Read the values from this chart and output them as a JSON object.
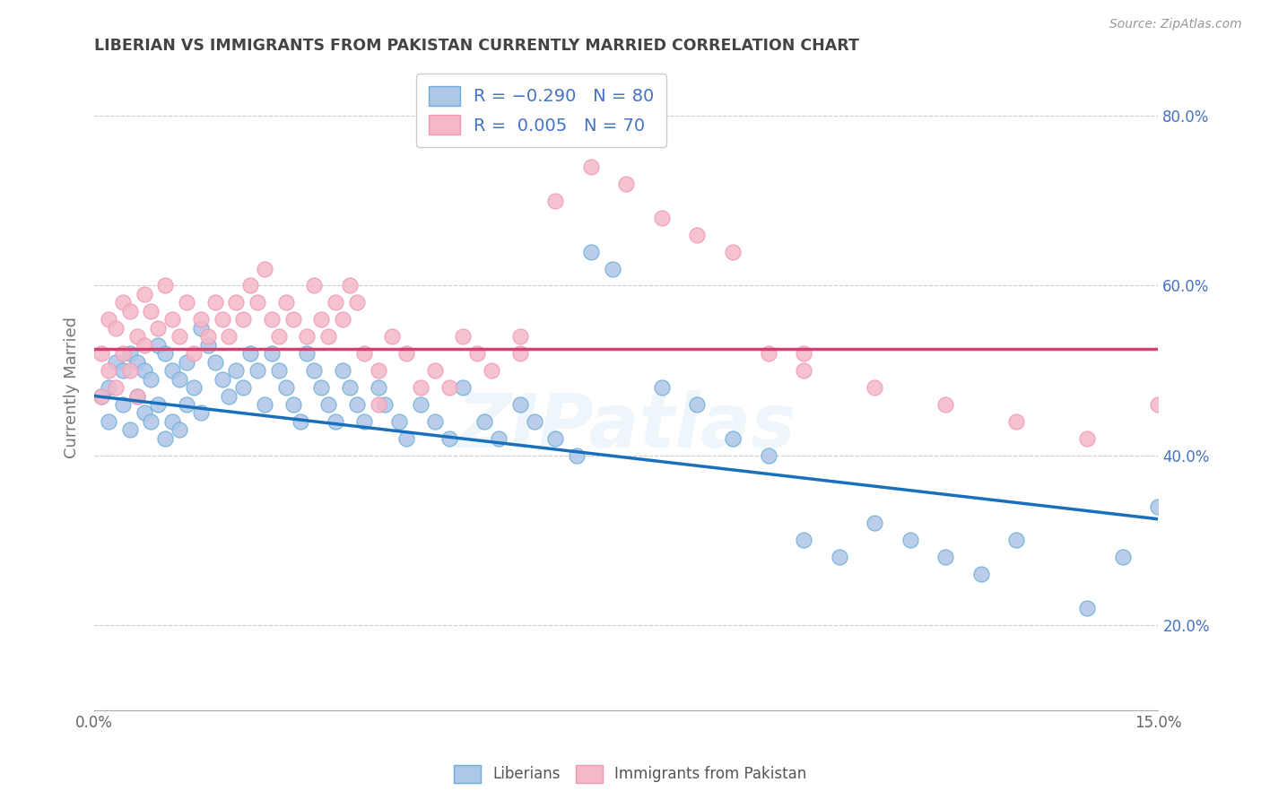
{
  "title": "LIBERIAN VS IMMIGRANTS FROM PAKISTAN CURRENTLY MARRIED CORRELATION CHART",
  "source": "Source: ZipAtlas.com",
  "ylabel": "Currently Married",
  "liberian_color": "#aec6e8",
  "pakistan_color": "#f4b8c8",
  "liberian_edge": "#6baed6",
  "pakistan_edge": "#f099b5",
  "trend_blue": "#1a6fbd",
  "trend_pink": "#d44070",
  "watermark": "ZIPatlas",
  "xlim": [
    0.0,
    0.15
  ],
  "ylim": [
    0.1,
    0.86
  ],
  "blue_trend_x": [
    0.0,
    0.15
  ],
  "blue_trend_y": [
    0.47,
    0.325
  ],
  "pink_trend_y": [
    0.525,
    0.525
  ],
  "background_color": "#ffffff",
  "grid_color": "#cccccc",
  "liberian_x": [
    0.001,
    0.002,
    0.002,
    0.003,
    0.004,
    0.004,
    0.005,
    0.005,
    0.006,
    0.006,
    0.007,
    0.007,
    0.008,
    0.008,
    0.009,
    0.009,
    0.01,
    0.01,
    0.011,
    0.011,
    0.012,
    0.012,
    0.013,
    0.013,
    0.014,
    0.015,
    0.015,
    0.016,
    0.017,
    0.018,
    0.019,
    0.02,
    0.021,
    0.022,
    0.023,
    0.024,
    0.025,
    0.026,
    0.027,
    0.028,
    0.029,
    0.03,
    0.031,
    0.032,
    0.033,
    0.034,
    0.035,
    0.036,
    0.037,
    0.038,
    0.04,
    0.041,
    0.043,
    0.044,
    0.046,
    0.048,
    0.05,
    0.052,
    0.055,
    0.057,
    0.06,
    0.062,
    0.065,
    0.068,
    0.07,
    0.073,
    0.08,
    0.085,
    0.09,
    0.095,
    0.1,
    0.105,
    0.11,
    0.115,
    0.12,
    0.125,
    0.13,
    0.14,
    0.145,
    0.15
  ],
  "liberian_y": [
    0.47,
    0.48,
    0.44,
    0.51,
    0.5,
    0.46,
    0.52,
    0.43,
    0.51,
    0.47,
    0.5,
    0.45,
    0.49,
    0.44,
    0.53,
    0.46,
    0.52,
    0.42,
    0.5,
    0.44,
    0.49,
    0.43,
    0.51,
    0.46,
    0.48,
    0.55,
    0.45,
    0.53,
    0.51,
    0.49,
    0.47,
    0.5,
    0.48,
    0.52,
    0.5,
    0.46,
    0.52,
    0.5,
    0.48,
    0.46,
    0.44,
    0.52,
    0.5,
    0.48,
    0.46,
    0.44,
    0.5,
    0.48,
    0.46,
    0.44,
    0.48,
    0.46,
    0.44,
    0.42,
    0.46,
    0.44,
    0.42,
    0.48,
    0.44,
    0.42,
    0.46,
    0.44,
    0.42,
    0.4,
    0.64,
    0.62,
    0.48,
    0.46,
    0.42,
    0.4,
    0.3,
    0.28,
    0.32,
    0.3,
    0.28,
    0.26,
    0.3,
    0.22,
    0.28,
    0.34
  ],
  "pakistan_x": [
    0.001,
    0.001,
    0.002,
    0.002,
    0.003,
    0.003,
    0.004,
    0.004,
    0.005,
    0.005,
    0.006,
    0.006,
    0.007,
    0.007,
    0.008,
    0.009,
    0.01,
    0.011,
    0.012,
    0.013,
    0.014,
    0.015,
    0.016,
    0.017,
    0.018,
    0.019,
    0.02,
    0.021,
    0.022,
    0.023,
    0.024,
    0.025,
    0.026,
    0.027,
    0.028,
    0.03,
    0.031,
    0.032,
    0.033,
    0.034,
    0.035,
    0.036,
    0.037,
    0.038,
    0.04,
    0.042,
    0.044,
    0.046,
    0.048,
    0.05,
    0.052,
    0.054,
    0.056,
    0.06,
    0.065,
    0.07,
    0.075,
    0.08,
    0.085,
    0.09,
    0.095,
    0.1,
    0.11,
    0.12,
    0.13,
    0.14,
    0.15,
    0.1,
    0.06,
    0.04
  ],
  "pakistan_y": [
    0.52,
    0.47,
    0.56,
    0.5,
    0.55,
    0.48,
    0.58,
    0.52,
    0.57,
    0.5,
    0.54,
    0.47,
    0.59,
    0.53,
    0.57,
    0.55,
    0.6,
    0.56,
    0.54,
    0.58,
    0.52,
    0.56,
    0.54,
    0.58,
    0.56,
    0.54,
    0.58,
    0.56,
    0.6,
    0.58,
    0.62,
    0.56,
    0.54,
    0.58,
    0.56,
    0.54,
    0.6,
    0.56,
    0.54,
    0.58,
    0.56,
    0.6,
    0.58,
    0.52,
    0.5,
    0.54,
    0.52,
    0.48,
    0.5,
    0.48,
    0.54,
    0.52,
    0.5,
    0.54,
    0.7,
    0.74,
    0.72,
    0.68,
    0.66,
    0.64,
    0.52,
    0.5,
    0.48,
    0.46,
    0.44,
    0.42,
    0.46,
    0.52,
    0.52,
    0.46
  ]
}
